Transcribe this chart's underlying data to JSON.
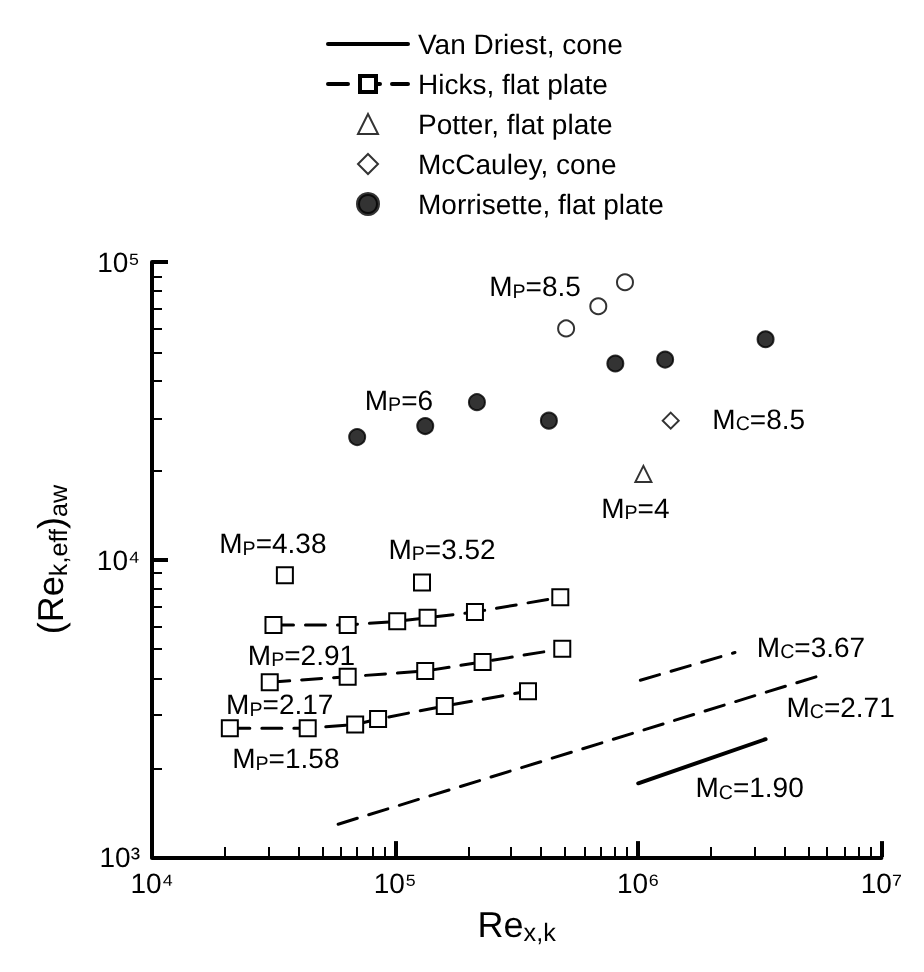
{
  "chart_data": {
    "type": "line",
    "xlabel": "Re$_{x,k}$",
    "ylabel": "(Re$_{k,eff}$)$_{aw}$",
    "log": "xy",
    "xlim": [
      10000,
      10000000
    ],
    "ylim": [
      1000,
      100000
    ],
    "xticks": [
      {
        "value": 10000,
        "label": "10⁴"
      },
      {
        "value": 100000,
        "label": "10⁵"
      },
      {
        "value": 1000000,
        "label": "10⁶"
      },
      {
        "value": 10000000,
        "label": "10⁷"
      }
    ],
    "yticks": [
      {
        "value": 1000,
        "label": "10³"
      },
      {
        "value": 10000,
        "label": "10⁴"
      },
      {
        "value": 100000,
        "label": "10⁵"
      }
    ],
    "grid": false,
    "legend": "top",
    "series": [
      {
        "name": "Van Driest, cone",
        "color": "#000000",
        "line_style": "solid",
        "marker": "none",
        "x": [
          1000000,
          3340000
        ],
        "values": [
          1770,
          2490
        ]
      },
      {
        "color": "#000000",
        "line_style": "dashed",
        "marker": "none",
        "x": [
          58300,
          5730000
        ],
        "values": [
          1290,
          4100
        ]
      },
      {
        "color": "#000000",
        "line_style": "dashed",
        "marker": "none",
        "x": [
          1020000,
          2500000
        ],
        "values": [
          3930,
          4870
        ]
      },
      {
        "name": "Hicks, flat plate",
        "color": "#000000",
        "line_style": "dashed",
        "marker": "square",
        "x": [
          31600,
          63800,
          102000,
          136000,
          213000,
          478000,
          null,
          30500,
          63800,
          133000,
          229000,
          487000,
          null,
          20900,
          43700,
          68500,
          85100,
          160000,
          352000,
          null,
          35200,
          null,
          129000
        ],
        "values": [
          6030,
          6030,
          6200,
          6380,
          6660,
          7470,
          null,
          3870,
          4040,
          4220,
          4530,
          5010,
          null,
          2710,
          2710,
          2790,
          2910,
          3220,
          3610,
          null,
          8860,
          null,
          8370
        ]
      },
      {
        "name": "Potter, flat plate",
        "type": "scatter",
        "color": "#ffffff",
        "marker": "triangle",
        "x": [
          1050000
        ],
        "values": [
          19400
        ]
      },
      {
        "name": "McCauley, cone",
        "type": "scatter",
        "color": "#ffffff",
        "marker": "diamond",
        "x": [
          1360000
        ],
        "values": [
          29300
        ]
      },
      {
        "name": "Morrisette, flat plate",
        "type": "scatter",
        "color": "#000000",
        "marker": "circle",
        "x": [
          69800,
          133000,
          217000,
          429000,
          805000,
          1290000,
          3340000
        ],
        "values": [
          25800,
          28100,
          33800,
          29300,
          45600,
          47000,
          55000
        ]
      },
      {
        "type": "scatter",
        "color": "#ffffff",
        "marker": "circle",
        "x": [
          505000,
          685000,
          882000
        ],
        "values": [
          59800,
          71000,
          85500
        ]
      }
    ],
    "annotations": [
      {
        "text": "M$_{P}$=8.5",
        "x": 882000,
        "y": 85500
      },
      {
        "text": "M$_{P}$=6",
        "x": 217000,
        "y": 33800
      },
      {
        "text": "M$_{C}$=8.5",
        "x": 1360000,
        "y": 29300
      },
      {
        "text": "M$_{P}$=4",
        "x": 1050000,
        "y": 19400
      },
      {
        "text": "M$_{P}$=4.38",
        "x": 35200,
        "y": 8860
      },
      {
        "text": "M$_{P}$=3.52",
        "x": 129000,
        "y": 8370
      },
      {
        "text": "M$_{P}$=2.91",
        "x": 31600,
        "y": 6030
      },
      {
        "text": "M$_{P}$=2.17",
        "x": 30500,
        "y": 3870
      },
      {
        "text": "M$_{P}$=1.58",
        "x": 20900,
        "y": 2710
      },
      {
        "text": "M$_{C}$=3.67",
        "x": 2500000,
        "y": 4870
      },
      {
        "text": "M$_{C}$=2.71",
        "x": 5730000,
        "y": 4100
      },
      {
        "text": "M$_{C}$=1.90",
        "x": 3340000,
        "y": 2490
      }
    ]
  }
}
